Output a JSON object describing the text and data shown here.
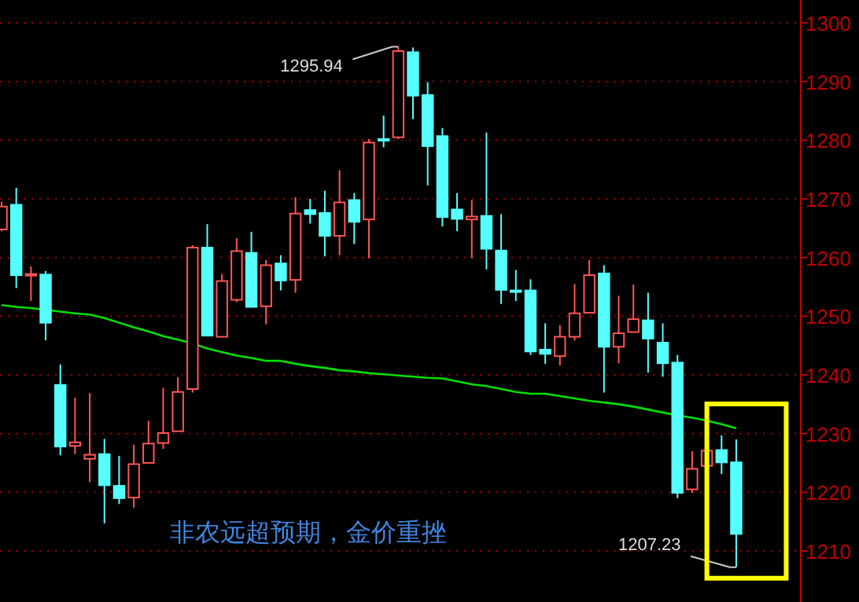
{
  "chart_data": {
    "type": "candlestick",
    "categories": [
      null,
      null,
      null,
      null,
      null,
      null,
      null,
      null,
      null,
      null,
      null,
      null,
      null,
      null,
      null,
      null,
      null,
      null,
      null,
      null,
      null,
      null,
      null,
      null,
      null,
      null,
      null,
      null,
      null,
      null,
      null,
      null,
      null,
      null,
      null,
      null,
      null,
      null,
      null,
      null,
      null,
      null,
      null,
      null,
      null,
      null,
      null,
      null,
      null,
      null,
      null
    ],
    "ohlc": [
      [
        1264.8,
        1269.5,
        1264.5,
        1268.7
      ],
      [
        1269.0,
        1271.9,
        1254.8,
        1257.0
      ],
      [
        1257.0,
        1258.5,
        1252.6,
        1257.2
      ],
      [
        1257.1,
        1257.7,
        1245.9,
        1248.9
      ],
      [
        1238.3,
        1241.8,
        1226.3,
        1227.8
      ],
      [
        1227.9,
        1236.1,
        1226.5,
        1228.5
      ],
      [
        1225.7,
        1236.9,
        1221.7,
        1226.4
      ],
      [
        1226.5,
        1229.1,
        1214.7,
        1221.2
      ],
      [
        1221.1,
        1226.2,
        1218.0,
        1219.0
      ],
      [
        1219.1,
        1228.1,
        1217.4,
        1224.8
      ],
      [
        1225.0,
        1232.2,
        1225.0,
        1228.3
      ],
      [
        1228.4,
        1237.8,
        1227.4,
        1230.1
      ],
      [
        1230.4,
        1239.6,
        1230.4,
        1237.1
      ],
      [
        1237.6,
        1262.1,
        1237.0,
        1261.7
      ],
      [
        1261.7,
        1265.7,
        1246.7,
        1246.7
      ],
      [
        1246.5,
        1257.2,
        1246.5,
        1256.0
      ],
      [
        1252.8,
        1263.3,
        1252.4,
        1261.1
      ],
      [
        1260.8,
        1264.4,
        1251.6,
        1251.6
      ],
      [
        1251.7,
        1259.6,
        1248.6,
        1258.7
      ],
      [
        1259.0,
        1260.4,
        1254.4,
        1256.1
      ],
      [
        1256.2,
        1270.3,
        1254.0,
        1267.5
      ],
      [
        1268.1,
        1270.0,
        1265.8,
        1267.4
      ],
      [
        1267.6,
        1271.4,
        1260.2,
        1263.7
      ],
      [
        1263.7,
        1274.9,
        1260.4,
        1269.4
      ],
      [
        1269.8,
        1271.0,
        1262.3,
        1266.1
      ],
      [
        1266.5,
        1280.2,
        1259.9,
        1279.6
      ],
      [
        1280.2,
        1284.2,
        1278.8,
        1280.1
      ],
      [
        1280.5,
        1295.94,
        1280.2,
        1295.2
      ],
      [
        1295.0,
        1295.8,
        1283.6,
        1287.6
      ],
      [
        1287.7,
        1289.9,
        1272.3,
        1279.0
      ],
      [
        1280.7,
        1282.1,
        1265.3,
        1266.9
      ],
      [
        1268.2,
        1271.0,
        1264.5,
        1266.6
      ],
      [
        1266.5,
        1269.8,
        1259.9,
        1267.0
      ],
      [
        1267.1,
        1281.3,
        1258.0,
        1261.5
      ],
      [
        1261.2,
        1267.4,
        1252.1,
        1254.5
      ],
      [
        1254.4,
        1257.9,
        1252.6,
        1254.3
      ],
      [
        1254.4,
        1256.3,
        1243.4,
        1244.0
      ],
      [
        1244.3,
        1248.8,
        1241.9,
        1243.6
      ],
      [
        1243.2,
        1248.5,
        1241.6,
        1246.5
      ],
      [
        1246.5,
        1255.5,
        1245.9,
        1250.5
      ],
      [
        1250.6,
        1259.6,
        1250.6,
        1257.0
      ],
      [
        1257.3,
        1258.7,
        1237.0,
        1244.8
      ],
      [
        1244.8,
        1253.5,
        1242.0,
        1247.1
      ],
      [
        1247.3,
        1255.4,
        1247.3,
        1249.5
      ],
      [
        1249.3,
        1254.0,
        1240.4,
        1246.2
      ],
      [
        1245.5,
        1248.8,
        1239.7,
        1242.0
      ],
      [
        1242.1,
        1243.4,
        1219.0,
        1219.9
      ],
      [
        1220.5,
        1227.0,
        1219.9,
        1224.0
      ],
      [
        1224.5,
        1227.3,
        1224.5,
        1227.1
      ],
      [
        1227.2,
        1229.7,
        1223.1,
        1225.1
      ],
      [
        1225.1,
        1229.0,
        1207.23,
        1212.9
      ]
    ],
    "colors": [
      "#ff5555",
      "#55ffff",
      "#ff5555",
      "#55ffff",
      "#55ffff",
      "#ff5555",
      "#ff5555",
      "#55ffff",
      "#55ffff",
      "#ff5555",
      "#ff5555",
      "#ff5555",
      "#ff5555",
      "#ff5555",
      "#55ffff",
      "#ff5555",
      "#ff5555",
      "#55ffff",
      "#ff5555",
      "#55ffff",
      "#ff5555",
      "#55ffff",
      "#55ffff",
      "#ff5555",
      "#55ffff",
      "#ff5555",
      "#55ffff",
      "#ff5555",
      "#55ffff",
      "#55ffff",
      "#55ffff",
      "#55ffff",
      "#ff5555",
      "#55ffff",
      "#55ffff",
      "#55ffff",
      "#55ffff",
      "#55ffff",
      "#ff5555",
      "#ff5555",
      "#ff5555",
      "#55ffff",
      "#ff5555",
      "#ff5555",
      "#55ffff",
      "#55ffff",
      "#55ffff",
      "#ff5555",
      "#ff5555",
      "#55ffff",
      "#55ffff"
    ],
    "series": [
      {
        "type": "line",
        "color": "#00e000",
        "values": [
          1251.9,
          1251.6,
          1251.4,
          1251.1,
          1250.8,
          1250.5,
          1250.3,
          1249.7,
          1248.9,
          1248.1,
          1247.4,
          1246.6,
          1246.0,
          1245.4,
          1244.5,
          1243.9,
          1243.3,
          1242.9,
          1242.4,
          1242.4,
          1241.9,
          1241.5,
          1241.2,
          1240.8,
          1240.6,
          1240.3,
          1240.1,
          1239.9,
          1239.7,
          1239.5,
          1239.4,
          1238.9,
          1238.4,
          1238.1,
          1237.6,
          1237.1,
          1236.8,
          1236.8,
          1236.4,
          1236.0,
          1235.6,
          1235.3,
          1235.0,
          1234.6,
          1234.1,
          1233.6,
          1233.1,
          1232.7,
          1232.2,
          1231.6,
          1230.9
        ]
      }
    ],
    "ylim": [
      1201.3,
      1303.9
    ],
    "yticks": [
      1210,
      1220,
      1230,
      1240,
      1250,
      1260,
      1270,
      1280,
      1290,
      1300
    ],
    "grid": "y",
    "annotations": [
      "1295.94",
      "1207.23",
      "非农远超预期，金价重挫"
    ]
  }
}
